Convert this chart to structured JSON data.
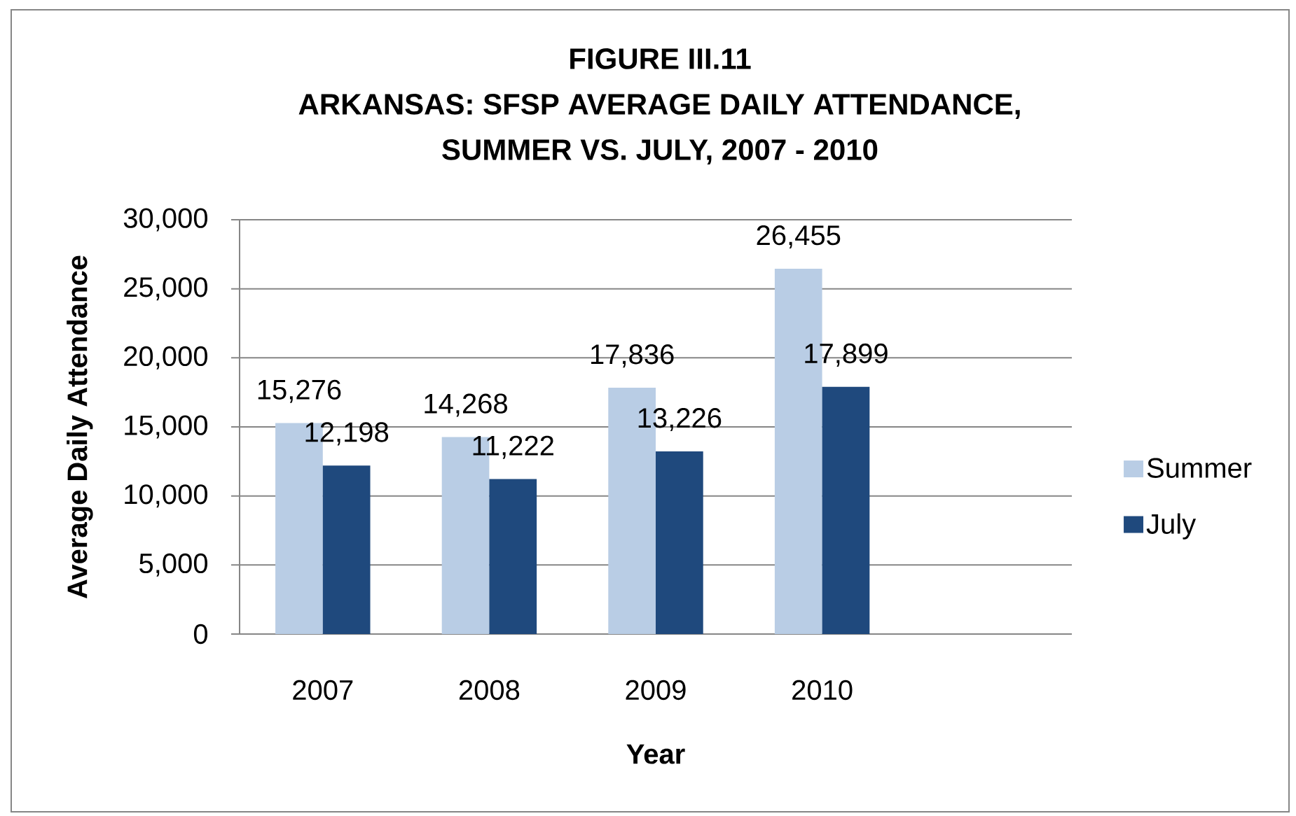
{
  "chart_data": {
    "type": "bar",
    "title": "FIGURE III.11",
    "subtitle": "ARKANSAS: SFSP AVERAGE DAILY ATTENDANCE, SUMMER VS. JULY, 2007 - 2010",
    "xlabel": "Year",
    "ylabel": "Average Daily Attendance",
    "categories": [
      "2007",
      "2008",
      "2009",
      "2010",
      null
    ],
    "series": [
      {
        "name": "Summer",
        "color": "#b9cde5",
        "values": [
          15276,
          14268,
          17836,
          26455,
          null
        ],
        "value_labels": [
          "15,276",
          "14,268",
          "17,836",
          "26,455",
          null
        ]
      },
      {
        "name": "July",
        "color": "#1f497d",
        "values": [
          12198,
          11222,
          13226,
          17899,
          null
        ],
        "value_labels": [
          "12,198",
          "11,222",
          "13,226",
          "17,899",
          null
        ]
      }
    ],
    "ylim": [
      0,
      30000
    ],
    "yticks": [
      0,
      {
        "value": 5000,
        "label": "5,000"
      },
      {
        "value": 10000,
        "label": "10,000"
      },
      {
        "value": 15000,
        "label": "15,000"
      },
      {
        "value": 20000,
        "label": "20,000"
      },
      {
        "value": 25000,
        "label": "25,000"
      },
      {
        "value": 30000,
        "label": "30,000"
      }
    ],
    "grid": "y",
    "legend": "right"
  }
}
